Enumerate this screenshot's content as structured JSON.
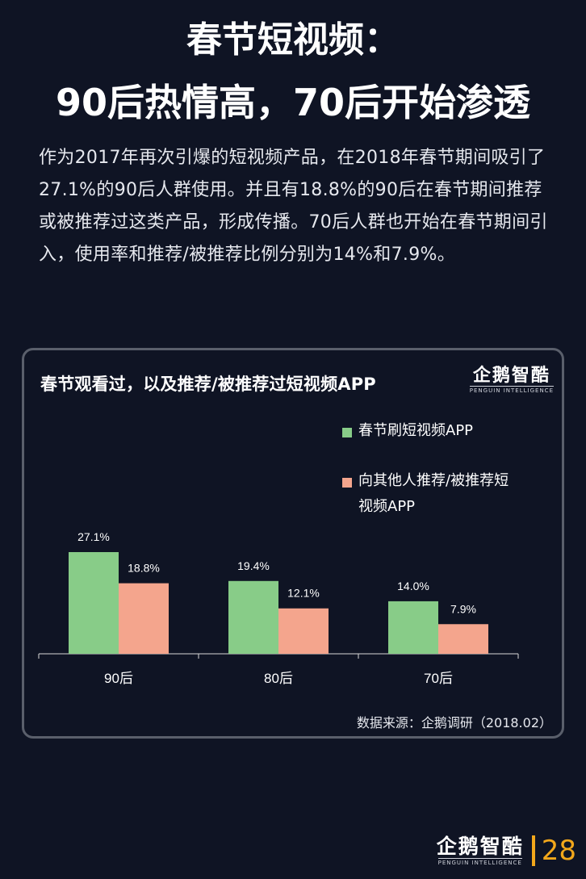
{
  "heading": {
    "line1": "春节短视频：",
    "line2": "90后热情高，70后开始渗透"
  },
  "intro": "作为2017年再次引爆的短视频产品，在2018年春节期间吸引了27.1%的90后人群使用。并且有18.8%的90后在春节期间推荐或被推荐过这类产品，形成传播。70后人群也开始在春节期间引入，使用率和推荐/被推荐比例分别为14%和7.9%。",
  "logo": {
    "name": "企鹅智酷",
    "tagline": "PENGUIN INTELLIGENCE"
  },
  "source": "数据来源：企鹅调研（2018.02）",
  "page_number": "28",
  "colors": {
    "series1": "#88cc88",
    "series2": "#f4a58d",
    "accent": "#f2a71b"
  },
  "chart_data": {
    "type": "bar",
    "title": "春节观看过，以及推荐/被推荐过短视频APP",
    "categories": [
      "90后",
      "80后",
      "70后"
    ],
    "series": [
      {
        "name": "春节刷短视频APP",
        "values": [
          27.1,
          19.4,
          14.0
        ],
        "labels": [
          "27.1%",
          "19.4%",
          "14.0%"
        ]
      },
      {
        "name": "向其他人推荐/被推荐短视频APP",
        "values": [
          18.8,
          12.1,
          7.9
        ],
        "labels": [
          "18.8%",
          "12.1%",
          "7.9%"
        ]
      }
    ],
    "legend_position": "top-right",
    "ylim": [
      0,
      30
    ],
    "grid": false
  }
}
